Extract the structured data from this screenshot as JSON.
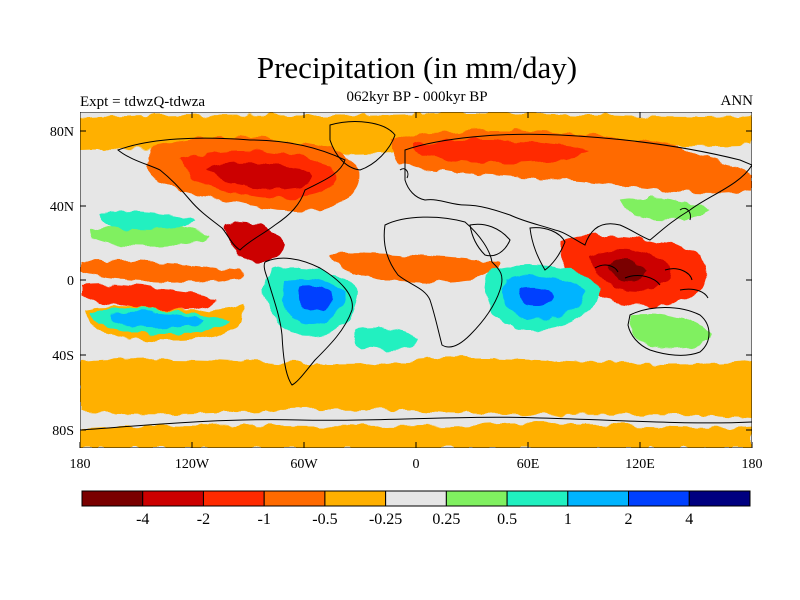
{
  "header": {
    "title": "Precipitation (in mm/day)",
    "subtitle": "062kyr BP - 000kyr BP",
    "left_string": "Expt = tdwzQ-tdwza",
    "right_string": "ANN"
  },
  "map": {
    "projection": "cylindrical-equidistant",
    "lon_range": [
      -180,
      180
    ],
    "lat_range": [
      -90,
      90
    ],
    "y_ticks": [
      "80N",
      "40N",
      "0",
      "40S",
      "80S"
    ],
    "x_ticks": [
      "180",
      "120W",
      "60W",
      "0",
      "60E",
      "120E",
      "180"
    ],
    "background_color": "#e6e6e6"
  },
  "colorbar": {
    "colors": [
      "#7a0000",
      "#cc0000",
      "#ff2a00",
      "#ff6a00",
      "#ffb000",
      "#e6e6e6",
      "#80f060",
      "#20f0c0",
      "#00b4ff",
      "#0040ff",
      "#000080"
    ],
    "labels": [
      "-4",
      "-2",
      "-1",
      "-0.5",
      "-0.25",
      "0.25",
      "0.5",
      "1",
      "2",
      "4"
    ]
  }
}
